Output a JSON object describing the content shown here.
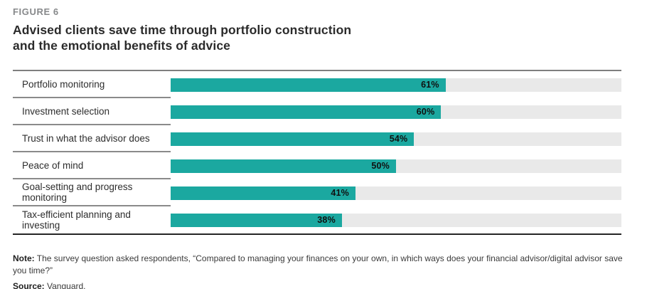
{
  "figure_label": "FIGURE 6",
  "title_line1": "Advised clients save time through portfolio construction",
  "title_line2": "and the emotional benefits of advice",
  "chart_data": {
    "type": "bar",
    "orientation": "horizontal",
    "title": "Advised clients save time through portfolio construction and the emotional benefits of advice",
    "categories": [
      "Portfolio monitoring",
      "Investment selection",
      "Trust in what the advisor does",
      "Peace of mind",
      "Goal-setting and progress monitoring",
      "Tax-efficient planning and investing"
    ],
    "values": [
      61,
      60,
      54,
      50,
      41,
      38
    ],
    "value_labels": [
      "61%",
      "60%",
      "54%",
      "50%",
      "41%",
      "38%"
    ],
    "xlabel": "",
    "ylabel": "",
    "xlim": [
      0,
      100
    ],
    "grid": false,
    "legend": "none",
    "bar_color": "#1ba8a0",
    "track_color": "#e9e9e9"
  },
  "footer": {
    "note_label": "Note:",
    "note_text": " The survey question asked respondents, “Compared to managing your finances on your own, in which ways does your financial advisor/digital advisor save you time?”",
    "source_label": "Source:",
    "source_text": " Vanguard."
  }
}
